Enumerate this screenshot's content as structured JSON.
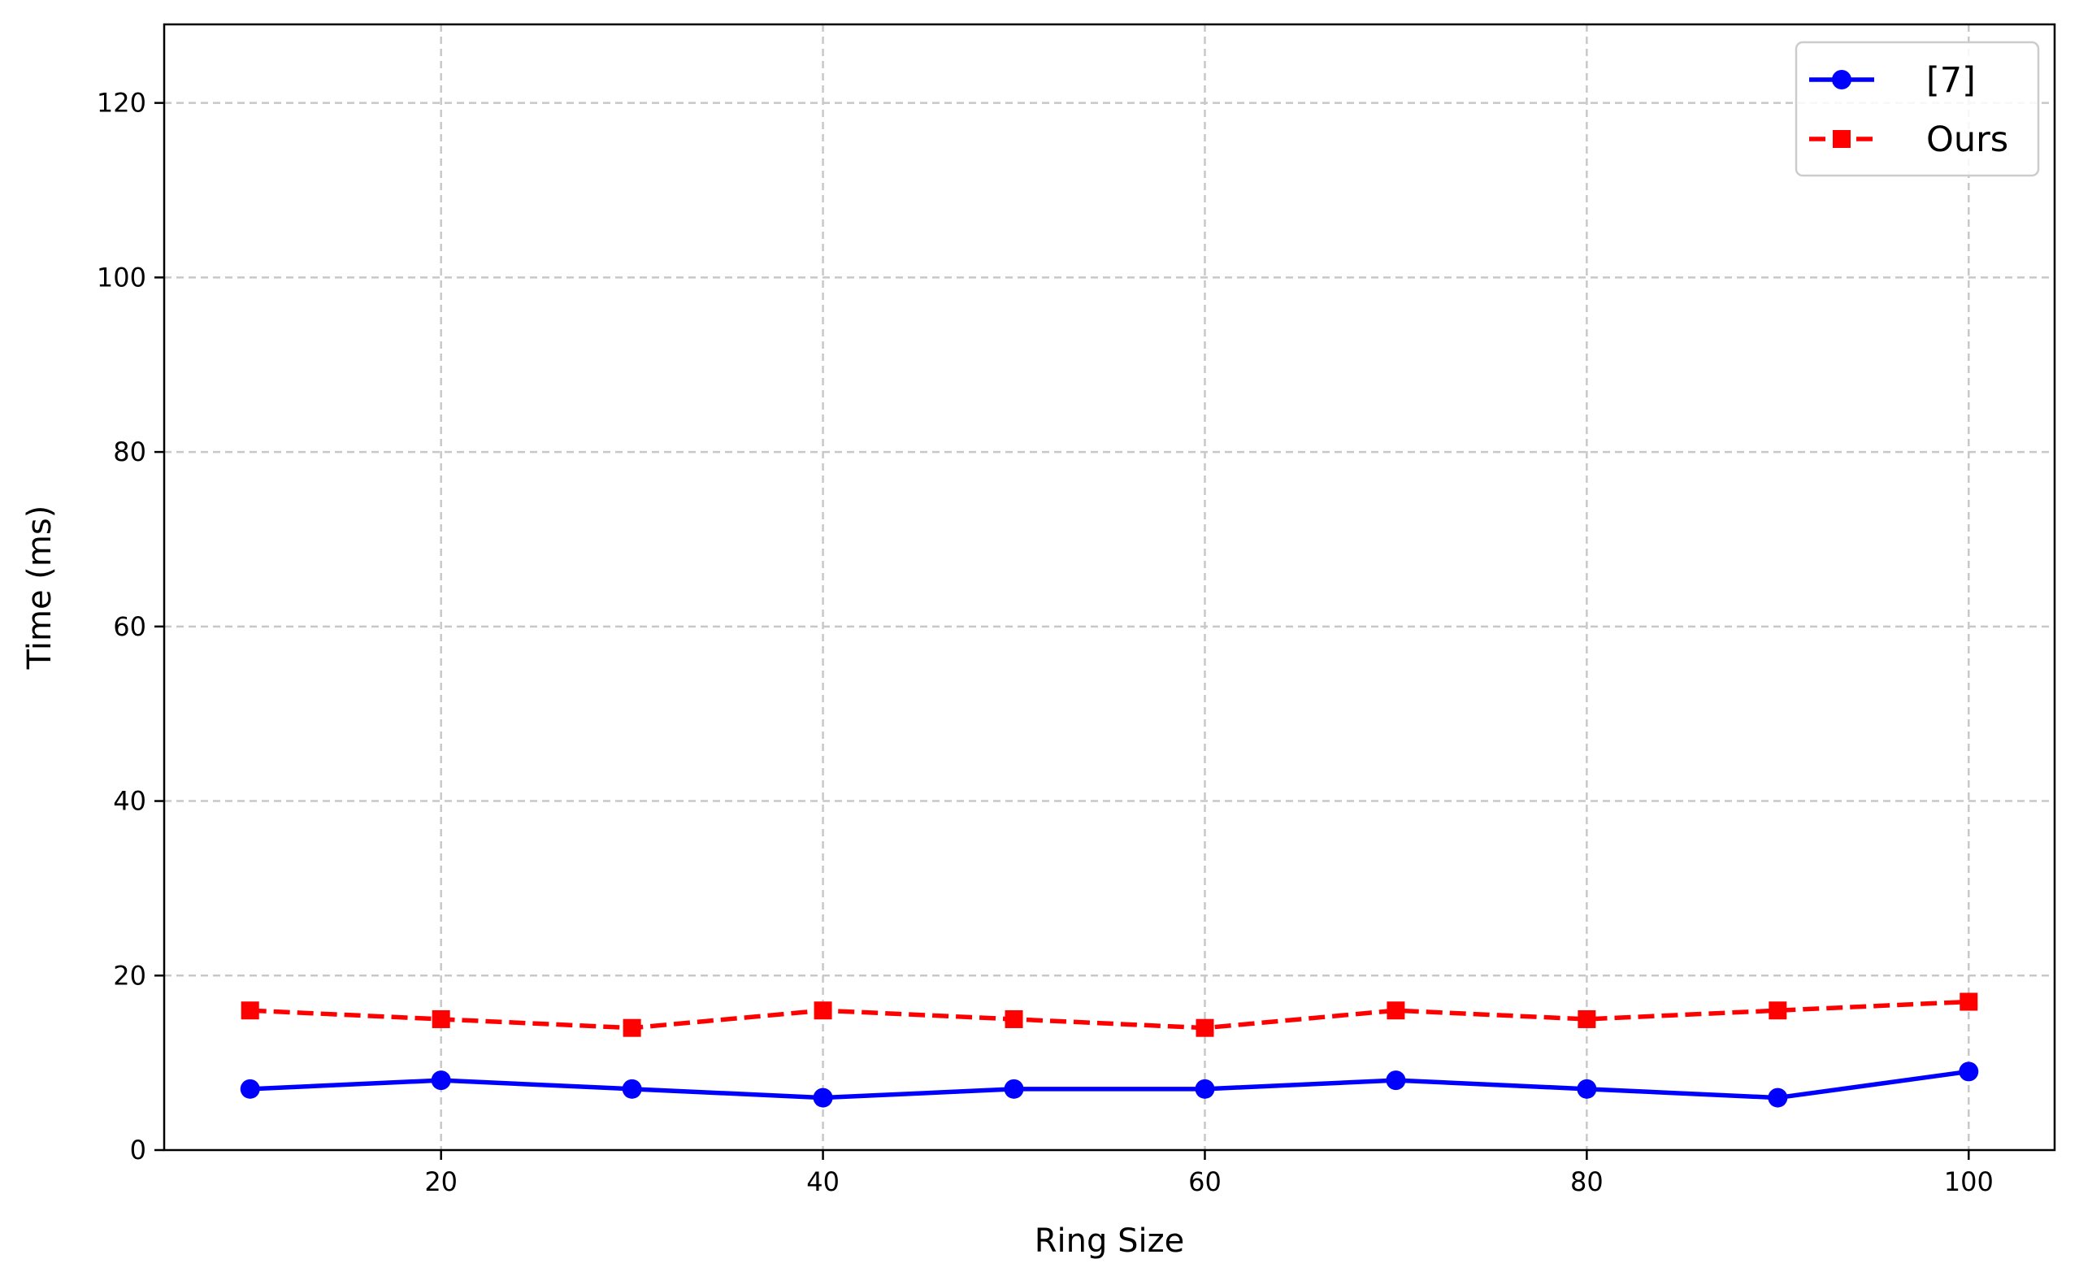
{
  "chart_data": {
    "type": "line",
    "title": "",
    "xlabel": "Ring Size",
    "ylabel": "Time (ms)",
    "xlim": [
      5.5,
      104.5
    ],
    "ylim": [
      0,
      129
    ],
    "xticks": [
      20,
      40,
      60,
      80,
      100
    ],
    "yticks": [
      0,
      20,
      40,
      60,
      80,
      100,
      120
    ],
    "x": [
      10,
      20,
      30,
      40,
      50,
      60,
      70,
      80,
      90,
      100
    ],
    "grid": true,
    "legend_position": "top-right",
    "series": [
      {
        "name": "[7]",
        "color": "#0000ff",
        "line_style": "solid",
        "marker": "circle",
        "values": [
          7,
          8,
          7,
          6,
          7,
          7,
          8,
          7,
          6,
          9
        ]
      },
      {
        "name": "Ours",
        "color": "#ff0000",
        "line_style": "dashed",
        "marker": "square",
        "values": [
          16,
          15,
          14,
          16,
          15,
          14,
          16,
          15,
          16,
          17
        ]
      }
    ]
  }
}
